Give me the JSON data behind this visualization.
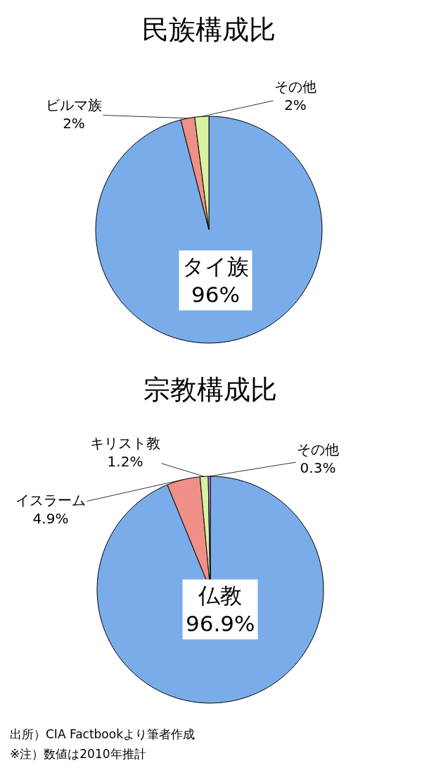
{
  "chart_data": [
    {
      "type": "pie",
      "title": "民族構成比",
      "categories": [
        "タイ族",
        "ビルマ族",
        "その他"
      ],
      "values": [
        96,
        2,
        2
      ],
      "value_labels": [
        "96%",
        "2%",
        "2%"
      ],
      "colors": [
        "#7aacea",
        "#ef8f88",
        "#d8f2a2"
      ]
    },
    {
      "type": "pie",
      "title": "宗教構成比",
      "categories": [
        "仏教",
        "イスラーム",
        "キリスト教",
        "その他"
      ],
      "values": [
        96.9,
        4.9,
        1.2,
        0.3
      ],
      "value_labels": [
        "96.9%",
        "4.9%",
        "1.2%",
        "0.3%"
      ],
      "colors": [
        "#7aacea",
        "#ef8f88",
        "#d8f2a2",
        "#b8a2d8"
      ],
      "annotations": [
        "出所）CIA Factbookより筆者作成",
        "※注）数値は2010年推計"
      ]
    }
  ]
}
